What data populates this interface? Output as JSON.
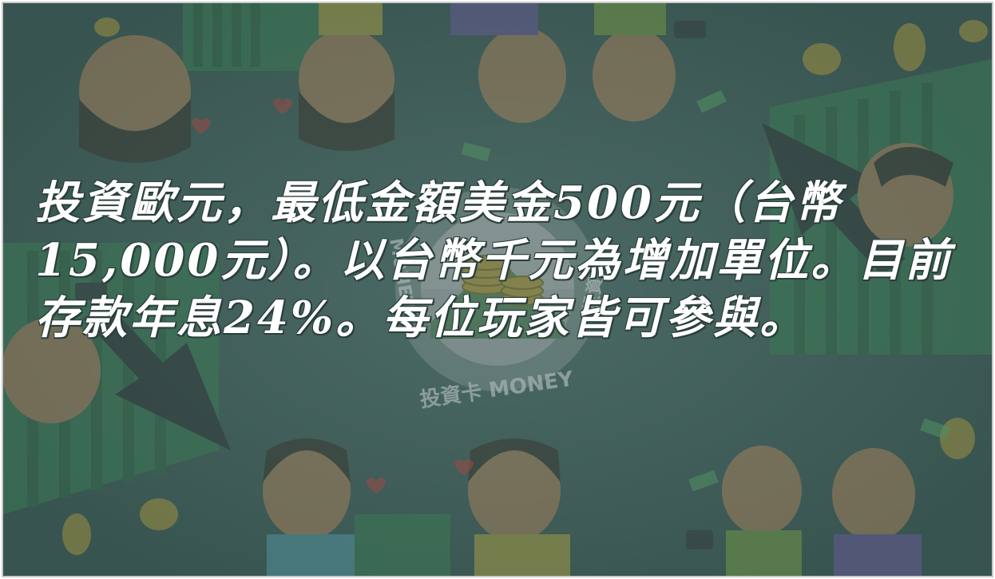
{
  "card": {
    "caption": "投資歐元，最低金額美金500元（台幣15,000元）。以台幣千元為增加單位。目前存款年息24%。每位玩家皆可參與。"
  },
  "logo": {
    "top_text": "投資卡 MONEY",
    "bottom_text": "投資卡 MONEY",
    "left_text": "MONEY",
    "right_text": "投資卡"
  },
  "colors": {
    "background": "#3f5e58",
    "caption": "#ffffff",
    "chart_green": "#3d8b55",
    "coin": "#c7a63a"
  },
  "icons": [
    "coin-icon",
    "money-bill-icon",
    "heart-icon",
    "up-arrow-icon"
  ]
}
